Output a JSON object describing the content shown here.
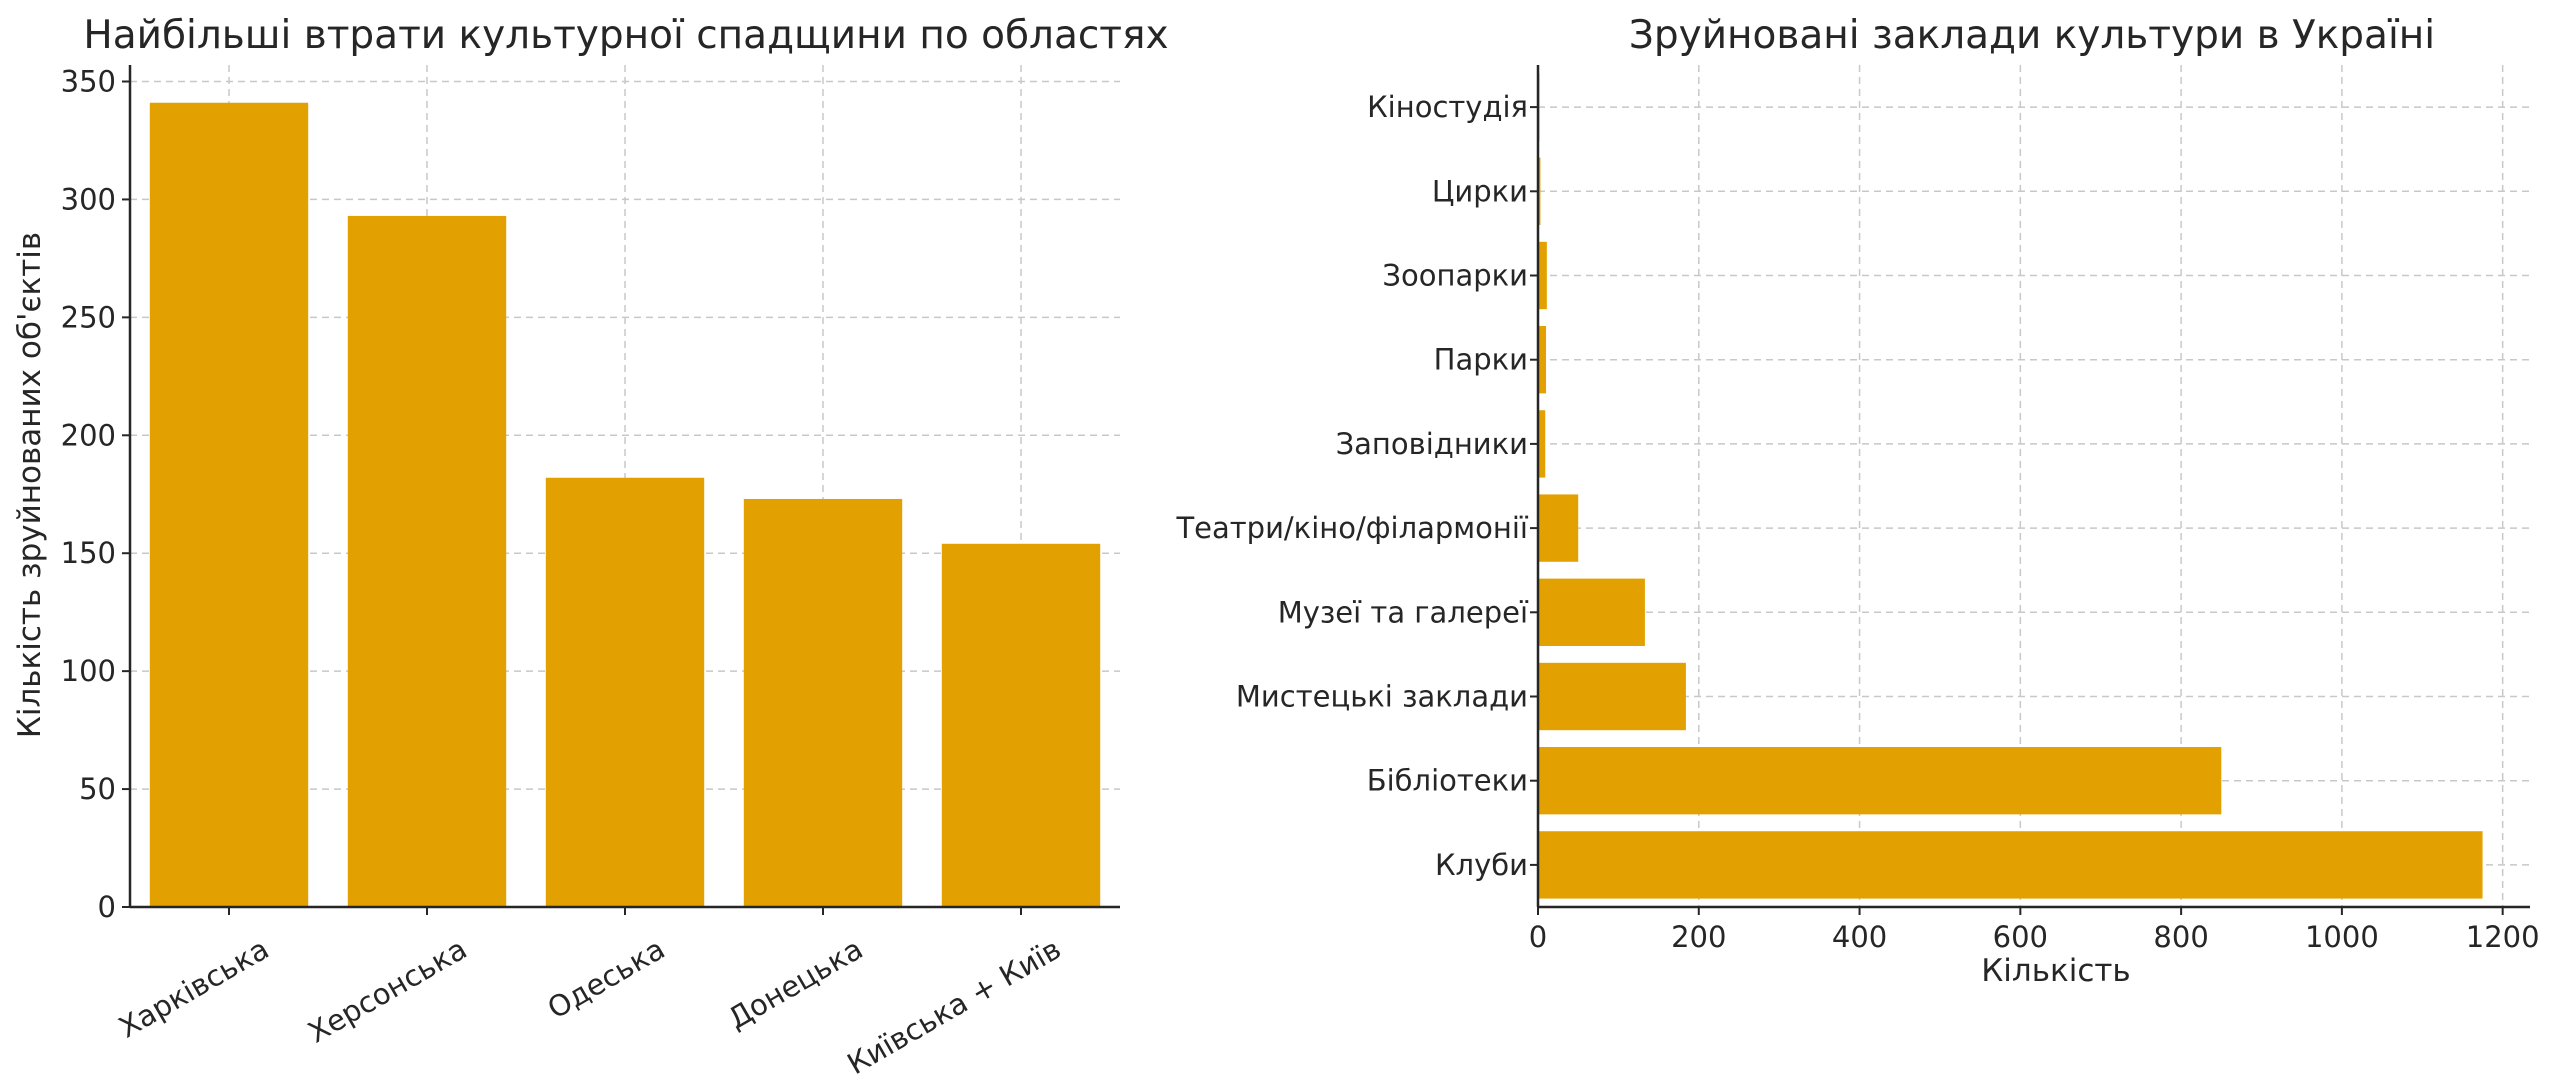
{
  "colors": {
    "bar": "#E3A101",
    "grid": "#c8c8c8",
    "axis": "#262626"
  },
  "chart_data": [
    {
      "type": "bar",
      "orientation": "vertical",
      "title": "Найбільші втрати культурної спадщини по областях",
      "xlabel": "",
      "ylabel": "Кількість зруйнованих об'єктів",
      "categories": [
        "Харківська",
        "Херсонська",
        "Одеська",
        "Донецька",
        "Київська + Київ"
      ],
      "values": [
        341,
        293,
        182,
        173,
        154
      ],
      "ylim": [
        0,
        357
      ],
      "yticks": [
        0,
        50,
        100,
        150,
        200,
        250,
        300,
        350
      ],
      "grid": true,
      "legend": "none"
    },
    {
      "type": "bar",
      "orientation": "horizontal",
      "title": "Зруйновані заклади культури в Україні",
      "xlabel": "Кількість",
      "ylabel": "",
      "categories": [
        "Клуби",
        "Бібліотеки",
        "Мистецькі заклади",
        "Музеї та галереї",
        "Театри/кіно/філармонії",
        "Заповідники",
        "Парки",
        "Зоопарки",
        "Цирки",
        "Кіностудія"
      ],
      "values": [
        1175,
        850,
        184,
        133,
        50,
        9,
        10,
        11,
        3,
        1
      ],
      "xlim": [
        0,
        1234
      ],
      "xticks": [
        0,
        200,
        400,
        600,
        800,
        1000,
        1200
      ],
      "grid": true,
      "legend": "none"
    }
  ]
}
